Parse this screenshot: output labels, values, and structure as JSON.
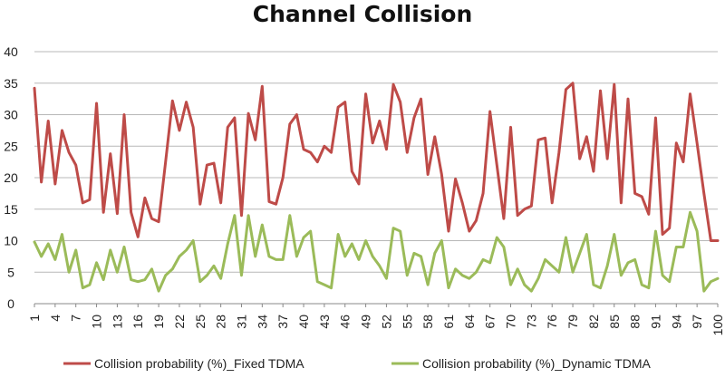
{
  "chart_data": {
    "type": "line",
    "title": "Channel Collision",
    "xlabel": "",
    "ylabel": "",
    "ylim": [
      0,
      40
    ],
    "yticks": [
      0,
      5,
      10,
      15,
      20,
      25,
      30,
      35,
      40
    ],
    "x_tick_labels": [
      "1",
      "4",
      "7",
      "10",
      "13",
      "16",
      "19",
      "22",
      "25",
      "28",
      "31",
      "34",
      "37",
      "40",
      "43",
      "46",
      "49",
      "52",
      "55",
      "58",
      "61",
      "64",
      "67",
      "70",
      "73",
      "76",
      "79",
      "82",
      "85",
      "88",
      "91",
      "94",
      "97",
      "100"
    ],
    "grid": true,
    "legend_position": "bottom",
    "x": [
      1,
      2,
      3,
      4,
      5,
      6,
      7,
      8,
      9,
      10,
      11,
      12,
      13,
      14,
      15,
      16,
      17,
      18,
      19,
      20,
      21,
      22,
      23,
      24,
      25,
      26,
      27,
      28,
      29,
      30,
      31,
      32,
      33,
      34,
      35,
      36,
      37,
      38,
      39,
      40,
      41,
      42,
      43,
      44,
      45,
      46,
      47,
      48,
      49,
      50,
      51,
      52,
      53,
      54,
      55,
      56,
      57,
      58,
      59,
      60,
      61,
      62,
      63,
      64,
      65,
      66,
      67,
      68,
      69,
      70,
      71,
      72,
      73,
      74,
      75,
      76,
      77,
      78,
      79,
      80,
      81,
      82,
      83,
      84,
      85,
      86,
      87,
      88,
      89,
      90,
      91,
      92,
      93,
      94,
      95,
      96,
      97,
      98,
      99,
      100
    ],
    "series": [
      {
        "name": "Collision probability (%)_Fixed TDMA",
        "color": "#be4b48",
        "values": [
          34.2,
          19.3,
          29.0,
          19.0,
          27.5,
          24.0,
          22.0,
          16.0,
          16.5,
          31.8,
          14.5,
          23.8,
          14.3,
          30.0,
          14.5,
          10.6,
          16.8,
          13.5,
          13.0,
          22.5,
          32.2,
          27.5,
          32.0,
          28.0,
          15.8,
          22.0,
          22.3,
          16.0,
          28.0,
          29.5,
          14.0,
          30.2,
          26.0,
          34.5,
          16.2,
          15.8,
          20.0,
          28.5,
          30.0,
          24.5,
          24.0,
          22.5,
          25.0,
          24.0,
          31.2,
          32.0,
          21.0,
          19.0,
          33.3,
          25.5,
          29.0,
          24.5,
          34.8,
          32.0,
          24.0,
          29.5,
          32.5,
          20.5,
          26.5,
          20.5,
          11.5,
          19.8,
          16.0,
          11.5,
          13.2,
          17.5,
          30.5,
          22.0,
          13.5,
          28.0,
          14.0,
          15.0,
          15.5,
          26.0,
          26.3,
          16.0,
          24.0,
          34.0,
          35.0,
          23.0,
          26.5,
          21.0,
          33.8,
          23.0,
          34.8,
          16.0,
          32.5,
          17.5,
          17.0,
          14.2,
          29.5,
          11.0,
          12.0,
          25.5,
          22.5,
          33.3,
          25.5,
          17.5,
          10.0,
          10.0
        ]
      },
      {
        "name": "Collision probability (%)_Dynamic TDMA",
        "color": "#9bbb59",
        "values": [
          9.8,
          7.5,
          9.5,
          7.0,
          11.0,
          5.0,
          8.5,
          2.5,
          3.0,
          6.5,
          3.8,
          8.5,
          5.0,
          9.0,
          3.8,
          3.5,
          3.8,
          5.5,
          2.0,
          4.5,
          5.5,
          7.5,
          8.5,
          10.0,
          3.5,
          4.5,
          6.0,
          4.0,
          9.5,
          14.0,
          4.5,
          14.0,
          7.5,
          12.5,
          7.5,
          7.0,
          7.0,
          14.0,
          7.5,
          10.5,
          11.5,
          3.5,
          3.0,
          2.5,
          11.0,
          7.5,
          9.5,
          7.0,
          10.0,
          7.5,
          6.0,
          4.0,
          12.0,
          11.5,
          4.5,
          8.0,
          7.5,
          3.0,
          8.0,
          10.0,
          2.5,
          5.5,
          4.5,
          4.0,
          5.0,
          7.0,
          6.5,
          10.5,
          9.0,
          3.0,
          5.5,
          3.0,
          2.0,
          4.0,
          7.0,
          6.0,
          5.0,
          10.5,
          5.0,
          8.0,
          11.0,
          3.0,
          2.5,
          6.0,
          11.0,
          4.5,
          6.5,
          7.0,
          3.0,
          2.5,
          11.5,
          4.5,
          3.5,
          9.0,
          9.0,
          14.5,
          11.5,
          2.0,
          3.5,
          4.0
        ]
      }
    ]
  }
}
